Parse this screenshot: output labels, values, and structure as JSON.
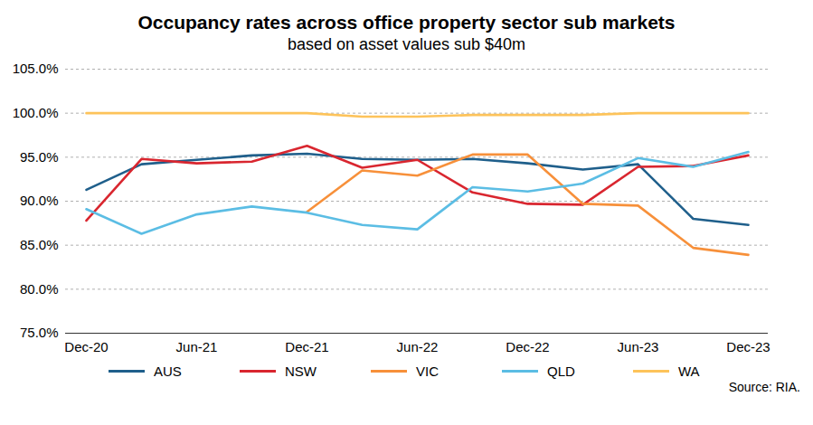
{
  "chart_data": {
    "type": "line",
    "title": "Occupancy rates across office property sector sub markets",
    "subtitle": "based on asset values sub $40m",
    "annotations": [
      "Source: RIA."
    ],
    "categories": [
      "Dec-20",
      null,
      "Jun-21",
      null,
      "Dec-21",
      null,
      "Jun-22",
      null,
      "Dec-22",
      null,
      "Jun-23",
      null,
      "Dec-23"
    ],
    "series": [
      {
        "name": "AUS",
        "color": "#1f5f8b",
        "values": [
          91.3,
          94.2,
          94.7,
          95.2,
          95.4,
          94.8,
          94.7,
          94.8,
          94.3,
          93.6,
          94.2,
          88.0,
          87.3
        ]
      },
      {
        "name": "NSW",
        "color": "#d9262f",
        "values": [
          87.8,
          94.8,
          94.3,
          94.5,
          96.3,
          93.8,
          94.7,
          91.0,
          89.7,
          89.6,
          93.9,
          94.0,
          95.2
        ]
      },
      {
        "name": "VIC",
        "color": "#f7903a",
        "values": [
          null,
          null,
          null,
          null,
          88.8,
          93.5,
          92.9,
          95.3,
          95.3,
          89.7,
          89.5,
          84.7,
          83.9
        ]
      },
      {
        "name": "QLD",
        "color": "#5bbde4",
        "values": [
          89.1,
          86.3,
          88.5,
          89.4,
          88.7,
          87.3,
          86.8,
          91.6,
          91.1,
          92.0,
          94.9,
          93.9,
          95.6
        ]
      },
      {
        "name": "WA",
        "color": "#fdc35a",
        "values": [
          100,
          100,
          100,
          100,
          100,
          99.6,
          99.6,
          99.8,
          99.8,
          99.8,
          100,
          100,
          100
        ]
      }
    ],
    "ylim": [
      75,
      105
    ],
    "yticks": [
      {
        "value": 75,
        "label": "75.0%"
      },
      {
        "value": 80,
        "label": "80.0%"
      },
      {
        "value": 85,
        "label": "85.0%"
      },
      {
        "value": 90,
        "label": "90.0%"
      },
      {
        "value": 95,
        "label": "95.0%"
      },
      {
        "value": 100,
        "label": "100.0%"
      },
      {
        "value": 105,
        "label": "105.0%"
      }
    ],
    "grid": true,
    "legend": "bottom"
  }
}
